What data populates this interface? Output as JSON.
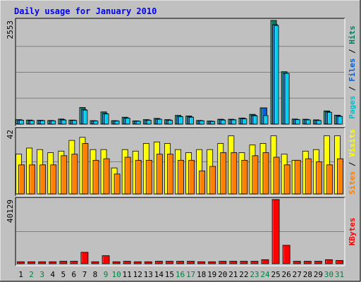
{
  "chart_data": [
    {
      "type": "bar",
      "title": "Daily usage for January 2010",
      "categories": [
        "1",
        "2",
        "3",
        "4",
        "5",
        "6",
        "7",
        "8",
        "9",
        "10",
        "11",
        "12",
        "13",
        "14",
        "15",
        "16",
        "17",
        "18",
        "19",
        "20",
        "21",
        "22",
        "23",
        "24",
        "25",
        "26",
        "27",
        "28",
        "29",
        "30",
        "31"
      ],
      "weekend_days": [
        "2",
        "3",
        "9",
        "10",
        "16",
        "17",
        "23",
        "24",
        "30",
        "31"
      ],
      "ymax_label": "2553",
      "ylim": [
        0,
        2553
      ],
      "ylabel_parts": [
        {
          "text": "Pages",
          "color": "#00c0d0"
        },
        {
          "text": " / ",
          "color": "#000000"
        },
        {
          "text": "Files",
          "color": "#0060e0"
        },
        {
          "text": " / ",
          "color": "#000000"
        },
        {
          "text": "Hits",
          "color": "#008060"
        }
      ],
      "series": [
        {
          "name": "Hits",
          "color": "#008060",
          "values": [
            110,
            100,
            95,
            90,
            125,
            100,
            410,
            85,
            300,
            85,
            170,
            80,
            110,
            140,
            110,
            215,
            200,
            90,
            75,
            120,
            120,
            150,
            240,
            400,
            2553,
            1290,
            125,
            120,
            105,
            325,
            220
          ]
        },
        {
          "name": "Files",
          "color": "#0060e0",
          "values": [
            100,
            90,
            90,
            85,
            110,
            95,
            360,
            80,
            260,
            80,
            150,
            75,
            100,
            125,
            100,
            190,
            180,
            85,
            70,
            110,
            110,
            140,
            220,
            400,
            2450,
            1250,
            115,
            110,
            95,
            300,
            200
          ]
        },
        {
          "name": "Pages",
          "color": "#00d0f0",
          "values": [
            95,
            85,
            85,
            80,
            100,
            90,
            345,
            75,
            250,
            75,
            145,
            70,
            95,
            120,
            95,
            180,
            170,
            80,
            65,
            100,
            105,
            130,
            205,
            210,
            2430,
            1250,
            110,
            105,
            90,
            290,
            190
          ]
        }
      ]
    },
    {
      "type": "bar",
      "ymax_label": "42",
      "ylim": [
        0,
        42
      ],
      "ylabel_parts": [
        {
          "text": "Sites",
          "color": "#ff8000"
        },
        {
          "text": " / ",
          "color": "#000000"
        },
        {
          "text": "Visits",
          "color": "#ffff00"
        }
      ],
      "series": [
        {
          "name": "Visits",
          "color": "#ffff00",
          "values": [
            26,
            30,
            29,
            27,
            28,
            35,
            37,
            29,
            29,
            17,
            29,
            28,
            33,
            34,
            33,
            29,
            27,
            29,
            29,
            33,
            38,
            27,
            32,
            33,
            38,
            26,
            22,
            28,
            29,
            38,
            38
          ]
        },
        {
          "name": "Sites",
          "color": "#ff8000",
          "values": [
            19,
            19,
            19,
            19,
            25,
            26,
            33,
            22,
            23,
            13,
            24,
            22,
            22,
            26,
            26,
            22,
            22,
            15,
            18,
            27,
            27,
            22,
            25,
            27,
            24,
            19,
            22,
            23,
            21,
            19,
            23
          ]
        }
      ]
    },
    {
      "type": "bar",
      "ymax_label": "40129",
      "ylim": [
        0,
        40129
      ],
      "ylabel_parts": [
        {
          "text": "KBytes",
          "color": "#ff0000"
        }
      ],
      "series": [
        {
          "name": "KBytes",
          "color": "#ff0000",
          "values": [
            1200,
            1200,
            1200,
            1200,
            1500,
            1500,
            7100,
            1200,
            5000,
            1200,
            1500,
            1200,
            1200,
            1500,
            1500,
            1500,
            1500,
            1200,
            1200,
            1500,
            1500,
            1500,
            1500,
            2500,
            40129,
            11500,
            1500,
            1500,
            1500,
            2500,
            2000
          ]
        }
      ]
    }
  ]
}
